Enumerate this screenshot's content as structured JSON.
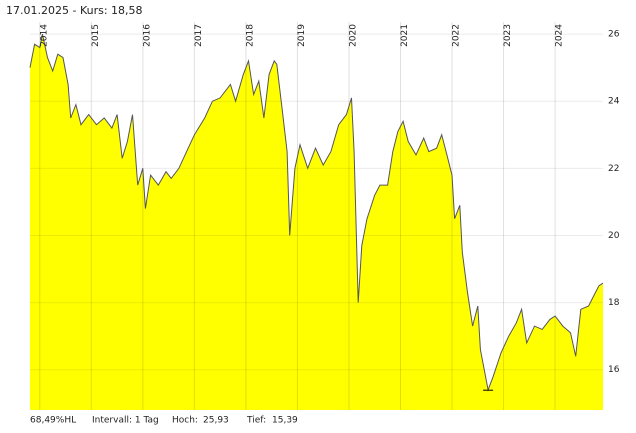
{
  "header": {
    "title": "17.01.2025  -  Kurs: 18,58"
  },
  "chart_data": {
    "type": "area",
    "color": "#ffff00",
    "line_color": "#555555",
    "x": [
      2013.81,
      2013.9,
      2014.0,
      2014.05,
      2014.15,
      2014.25,
      2014.35,
      2014.45,
      2014.55,
      2014.6,
      2014.7,
      2014.8,
      2014.95,
      2015.1,
      2015.25,
      2015.4,
      2015.5,
      2015.6,
      2015.7,
      2015.8,
      2015.9,
      2016.0,
      2016.05,
      2016.15,
      2016.3,
      2016.45,
      2016.55,
      2016.7,
      2016.85,
      2017.0,
      2017.2,
      2017.35,
      2017.5,
      2017.7,
      2017.8,
      2017.95,
      2018.05,
      2018.15,
      2018.25,
      2018.35,
      2018.45,
      2018.55,
      2018.6,
      2018.7,
      2018.8,
      2018.85,
      2018.95,
      2019.05,
      2019.2,
      2019.35,
      2019.5,
      2019.65,
      2019.8,
      2019.95,
      2020.05,
      2020.1,
      2020.18,
      2020.25,
      2020.35,
      2020.5,
      2020.6,
      2020.75,
      2020.85,
      2020.95,
      2021.05,
      2021.15,
      2021.3,
      2021.45,
      2021.55,
      2021.7,
      2021.8,
      2021.9,
      2022.0,
      2022.05,
      2022.15,
      2022.2,
      2022.3,
      2022.4,
      2022.5,
      2022.55,
      2022.7,
      2022.8,
      2022.95,
      2023.1,
      2023.25,
      2023.35,
      2023.45,
      2023.6,
      2023.75,
      2023.9,
      2024.0,
      2024.15,
      2024.3,
      2024.4,
      2024.5,
      2024.65,
      2024.75,
      2024.85,
      2024.93
    ],
    "values": [
      25.0,
      25.7,
      25.6,
      26.0,
      25.3,
      24.9,
      25.4,
      25.3,
      24.5,
      23.5,
      23.9,
      23.3,
      23.6,
      23.3,
      23.5,
      23.2,
      23.6,
      22.3,
      22.8,
      23.6,
      21.5,
      22.0,
      20.8,
      21.8,
      21.5,
      21.9,
      21.7,
      22.0,
      22.5,
      23.0,
      23.5,
      24.0,
      24.1,
      24.5,
      24.0,
      24.8,
      25.2,
      24.2,
      24.6,
      23.5,
      24.8,
      25.2,
      25.1,
      23.8,
      22.5,
      20.0,
      22.0,
      22.7,
      22.0,
      22.6,
      22.1,
      22.5,
      23.3,
      23.6,
      24.1,
      22.5,
      18.0,
      19.7,
      20.5,
      21.2,
      21.5,
      21.5,
      22.5,
      23.1,
      23.4,
      22.8,
      22.4,
      22.9,
      22.5,
      22.6,
      23.0,
      22.4,
      21.8,
      20.5,
      20.9,
      19.5,
      18.3,
      17.3,
      17.9,
      16.6,
      15.4,
      15.8,
      16.5,
      17.0,
      17.4,
      17.8,
      16.8,
      17.3,
      17.2,
      17.5,
      17.6,
      17.3,
      17.1,
      16.4,
      17.8,
      17.9,
      18.2,
      18.5,
      18.58
    ],
    "xlim": [
      2013.81,
      2024.93
    ],
    "xticks": [
      2014,
      2015,
      2016,
      2017,
      2018,
      2019,
      2020,
      2021,
      2022,
      2023,
      2024
    ],
    "ylim": [
      14.8,
      26.36
    ],
    "yticks": [
      16,
      18,
      20,
      22,
      24,
      26
    ],
    "grid": true,
    "low": 15.39
  },
  "footer": {
    "hl": "68,49%HL",
    "interval": "Intervall: 1 Tag",
    "high_label": "Hoch:",
    "high": "25,93",
    "low_label": "Tief:",
    "low": "15,39"
  }
}
